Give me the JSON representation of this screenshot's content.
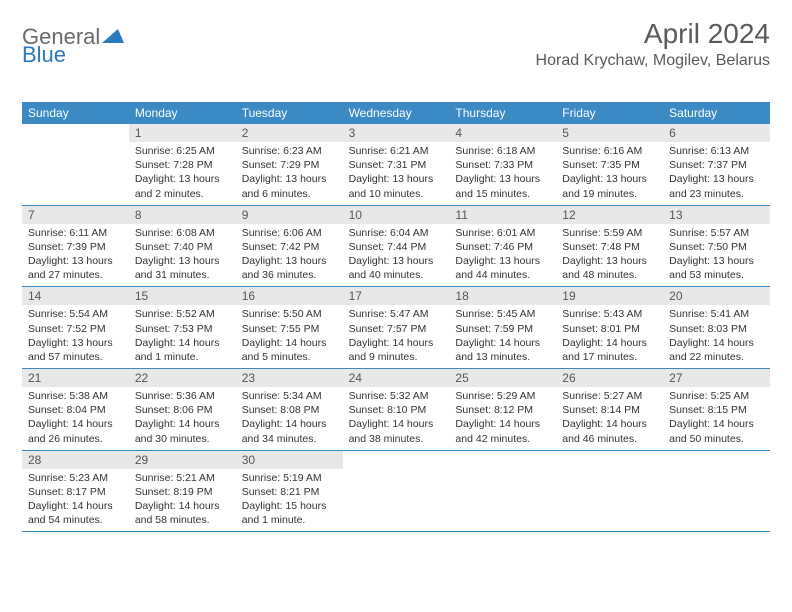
{
  "logo": {
    "general": "General",
    "blue": "Blue"
  },
  "title": "April 2024",
  "location": "Horad Krychaw, Mogilev, Belarus",
  "weekdays": [
    "Sunday",
    "Monday",
    "Tuesday",
    "Wednesday",
    "Thursday",
    "Friday",
    "Saturday"
  ],
  "colors": {
    "header_bg": "#3b8ac4",
    "daynum_bg": "#e8e8e8",
    "title_color": "#5a5a5a"
  },
  "weeks": [
    [
      {
        "n": "",
        "sr": "",
        "ss": "",
        "dl": ""
      },
      {
        "n": "1",
        "sr": "Sunrise: 6:25 AM",
        "ss": "Sunset: 7:28 PM",
        "dl": "Daylight: 13 hours and 2 minutes."
      },
      {
        "n": "2",
        "sr": "Sunrise: 6:23 AM",
        "ss": "Sunset: 7:29 PM",
        "dl": "Daylight: 13 hours and 6 minutes."
      },
      {
        "n": "3",
        "sr": "Sunrise: 6:21 AM",
        "ss": "Sunset: 7:31 PM",
        "dl": "Daylight: 13 hours and 10 minutes."
      },
      {
        "n": "4",
        "sr": "Sunrise: 6:18 AM",
        "ss": "Sunset: 7:33 PM",
        "dl": "Daylight: 13 hours and 15 minutes."
      },
      {
        "n": "5",
        "sr": "Sunrise: 6:16 AM",
        "ss": "Sunset: 7:35 PM",
        "dl": "Daylight: 13 hours and 19 minutes."
      },
      {
        "n": "6",
        "sr": "Sunrise: 6:13 AM",
        "ss": "Sunset: 7:37 PM",
        "dl": "Daylight: 13 hours and 23 minutes."
      }
    ],
    [
      {
        "n": "7",
        "sr": "Sunrise: 6:11 AM",
        "ss": "Sunset: 7:39 PM",
        "dl": "Daylight: 13 hours and 27 minutes."
      },
      {
        "n": "8",
        "sr": "Sunrise: 6:08 AM",
        "ss": "Sunset: 7:40 PM",
        "dl": "Daylight: 13 hours and 31 minutes."
      },
      {
        "n": "9",
        "sr": "Sunrise: 6:06 AM",
        "ss": "Sunset: 7:42 PM",
        "dl": "Daylight: 13 hours and 36 minutes."
      },
      {
        "n": "10",
        "sr": "Sunrise: 6:04 AM",
        "ss": "Sunset: 7:44 PM",
        "dl": "Daylight: 13 hours and 40 minutes."
      },
      {
        "n": "11",
        "sr": "Sunrise: 6:01 AM",
        "ss": "Sunset: 7:46 PM",
        "dl": "Daylight: 13 hours and 44 minutes."
      },
      {
        "n": "12",
        "sr": "Sunrise: 5:59 AM",
        "ss": "Sunset: 7:48 PM",
        "dl": "Daylight: 13 hours and 48 minutes."
      },
      {
        "n": "13",
        "sr": "Sunrise: 5:57 AM",
        "ss": "Sunset: 7:50 PM",
        "dl": "Daylight: 13 hours and 53 minutes."
      }
    ],
    [
      {
        "n": "14",
        "sr": "Sunrise: 5:54 AM",
        "ss": "Sunset: 7:52 PM",
        "dl": "Daylight: 13 hours and 57 minutes."
      },
      {
        "n": "15",
        "sr": "Sunrise: 5:52 AM",
        "ss": "Sunset: 7:53 PM",
        "dl": "Daylight: 14 hours and 1 minute."
      },
      {
        "n": "16",
        "sr": "Sunrise: 5:50 AM",
        "ss": "Sunset: 7:55 PM",
        "dl": "Daylight: 14 hours and 5 minutes."
      },
      {
        "n": "17",
        "sr": "Sunrise: 5:47 AM",
        "ss": "Sunset: 7:57 PM",
        "dl": "Daylight: 14 hours and 9 minutes."
      },
      {
        "n": "18",
        "sr": "Sunrise: 5:45 AM",
        "ss": "Sunset: 7:59 PM",
        "dl": "Daylight: 14 hours and 13 minutes."
      },
      {
        "n": "19",
        "sr": "Sunrise: 5:43 AM",
        "ss": "Sunset: 8:01 PM",
        "dl": "Daylight: 14 hours and 17 minutes."
      },
      {
        "n": "20",
        "sr": "Sunrise: 5:41 AM",
        "ss": "Sunset: 8:03 PM",
        "dl": "Daylight: 14 hours and 22 minutes."
      }
    ],
    [
      {
        "n": "21",
        "sr": "Sunrise: 5:38 AM",
        "ss": "Sunset: 8:04 PM",
        "dl": "Daylight: 14 hours and 26 minutes."
      },
      {
        "n": "22",
        "sr": "Sunrise: 5:36 AM",
        "ss": "Sunset: 8:06 PM",
        "dl": "Daylight: 14 hours and 30 minutes."
      },
      {
        "n": "23",
        "sr": "Sunrise: 5:34 AM",
        "ss": "Sunset: 8:08 PM",
        "dl": "Daylight: 14 hours and 34 minutes."
      },
      {
        "n": "24",
        "sr": "Sunrise: 5:32 AM",
        "ss": "Sunset: 8:10 PM",
        "dl": "Daylight: 14 hours and 38 minutes."
      },
      {
        "n": "25",
        "sr": "Sunrise: 5:29 AM",
        "ss": "Sunset: 8:12 PM",
        "dl": "Daylight: 14 hours and 42 minutes."
      },
      {
        "n": "26",
        "sr": "Sunrise: 5:27 AM",
        "ss": "Sunset: 8:14 PM",
        "dl": "Daylight: 14 hours and 46 minutes."
      },
      {
        "n": "27",
        "sr": "Sunrise: 5:25 AM",
        "ss": "Sunset: 8:15 PM",
        "dl": "Daylight: 14 hours and 50 minutes."
      }
    ],
    [
      {
        "n": "28",
        "sr": "Sunrise: 5:23 AM",
        "ss": "Sunset: 8:17 PM",
        "dl": "Daylight: 14 hours and 54 minutes."
      },
      {
        "n": "29",
        "sr": "Sunrise: 5:21 AM",
        "ss": "Sunset: 8:19 PM",
        "dl": "Daylight: 14 hours and 58 minutes."
      },
      {
        "n": "30",
        "sr": "Sunrise: 5:19 AM",
        "ss": "Sunset: 8:21 PM",
        "dl": "Daylight: 15 hours and 1 minute."
      },
      {
        "n": "",
        "sr": "",
        "ss": "",
        "dl": ""
      },
      {
        "n": "",
        "sr": "",
        "ss": "",
        "dl": ""
      },
      {
        "n": "",
        "sr": "",
        "ss": "",
        "dl": ""
      },
      {
        "n": "",
        "sr": "",
        "ss": "",
        "dl": ""
      }
    ]
  ]
}
